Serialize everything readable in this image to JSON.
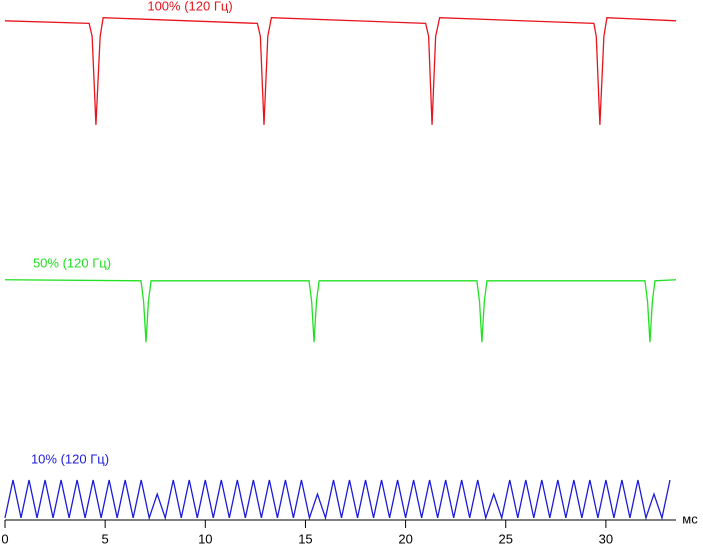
{
  "chart_data": {
    "type": "line",
    "x_label": "мс",
    "xlim": [
      0,
      33.5
    ],
    "xticks": [
      0,
      5,
      10,
      15,
      20,
      25,
      30
    ],
    "ylim": [
      0,
      100
    ],
    "grid": false,
    "series": [
      {
        "name": "100% (120 Гц)",
        "color": "#e8141c",
        "x": [
          0,
          4.2,
          4.35,
          4.54,
          4.75,
          4.9,
          12.6,
          12.75,
          12.93,
          13.12,
          13.3,
          21.0,
          21.15,
          21.32,
          21.5,
          21.7,
          29.4,
          29.52,
          29.7,
          29.9,
          30.05,
          33.5
        ],
        "values": [
          96,
          95.5,
          93,
          76,
          93,
          96.6,
          95.5,
          93,
          76,
          93,
          96.6,
          95.5,
          93,
          76,
          93,
          96.6,
          95.5,
          93,
          76,
          93,
          96.6,
          96
        ]
      },
      {
        "name": "50% (120 Гц)",
        "color": "#22e022",
        "x": [
          0,
          6.79,
          6.92,
          7.04,
          7.16,
          7.29,
          15.18,
          15.31,
          15.43,
          15.55,
          15.68,
          23.56,
          23.69,
          23.81,
          23.93,
          24.06,
          31.95,
          32.08,
          32.2,
          32.32,
          32.45,
          33.5
        ],
        "values": [
          46.2,
          46,
          42,
          34.2,
          42,
          46,
          46,
          42,
          34.2,
          42,
          46,
          46,
          42,
          34.2,
          42,
          46,
          46,
          42,
          34.2,
          42,
          46,
          46.2
        ]
      },
      {
        "name": "10% (120 Гц)",
        "color": "#1c1cd8",
        "x": [
          0,
          0.4,
          0.8,
          1.2,
          1.6,
          2,
          2.4,
          2.8,
          3.2,
          3.6,
          4,
          4.4,
          4.8,
          5.2,
          5.6,
          6,
          6.4,
          6.8,
          7.2,
          7.6,
          8,
          8.4,
          8.8,
          9.2,
          9.6,
          10,
          10.4,
          10.8,
          11.2,
          11.6,
          12,
          12.4,
          12.8,
          13.2,
          13.6,
          14,
          14.4,
          14.8,
          15.2,
          15.6,
          16,
          16.4,
          16.8,
          17.2,
          17.6,
          18,
          18.4,
          18.8,
          19.2,
          19.6,
          20,
          20.4,
          20.8,
          21.2,
          21.6,
          22,
          22.4,
          22.8,
          23.2,
          23.6,
          24,
          24.4,
          24.8,
          25.2,
          25.6,
          26,
          26.4,
          26.8,
          27.2,
          27.6,
          28,
          28.4,
          28.8,
          29.2,
          29.6,
          30,
          30.4,
          30.8,
          31.2,
          31.6,
          32,
          32.4,
          32.8,
          33.2
        ],
        "values": [
          0.4,
          7.7,
          0.4,
          7.7,
          0.4,
          7.7,
          0.4,
          7.7,
          0.4,
          7.7,
          0.4,
          7.7,
          0.4,
          7.7,
          0.4,
          7.7,
          0.4,
          7.7,
          0.4,
          5.0,
          0.4,
          7.7,
          0.4,
          7.7,
          0.4,
          7.7,
          0.4,
          7.7,
          0.4,
          7.7,
          0.4,
          7.7,
          0.4,
          7.7,
          0.4,
          7.7,
          0.4,
          7.7,
          0.4,
          5.0,
          0.4,
          7.7,
          0.4,
          7.7,
          0.4,
          7.7,
          0.4,
          7.7,
          0.4,
          7.7,
          0.4,
          7.7,
          0.4,
          7.7,
          0.4,
          7.7,
          0.4,
          7.7,
          0.4,
          7.7,
          0.4,
          5.0,
          0.4,
          7.7,
          0.4,
          7.7,
          0.4,
          7.7,
          0.4,
          7.7,
          0.4,
          7.7,
          0.4,
          7.7,
          0.4,
          7.7,
          0.4,
          7.7,
          0.4,
          7.7,
          0.4,
          5.0,
          0.4,
          7.7
        ]
      }
    ]
  }
}
